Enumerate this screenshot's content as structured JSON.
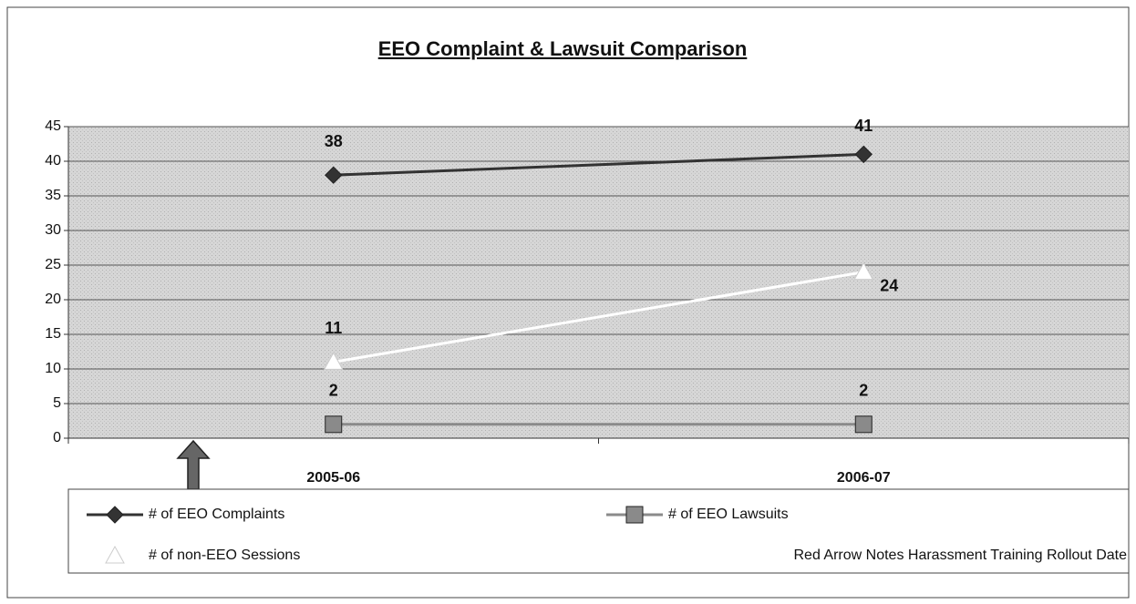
{
  "chart_data": {
    "type": "line",
    "title": "EEO Complaint & Lawsuit Comparison",
    "categories": [
      "2005-06",
      "2006-07"
    ],
    "series": [
      {
        "name": "# of EEO Complaints",
        "color": "#333333",
        "marker": "diamond",
        "values": [
          38,
          41
        ]
      },
      {
        "name": "# of EEO Lawsuits",
        "color": "#8a8a8a",
        "marker": "square",
        "values": [
          2,
          2
        ]
      },
      {
        "name": "# of non-EEO Sessions",
        "color": "#ffffff",
        "marker": "triangle",
        "values": [
          11,
          24
        ]
      }
    ],
    "annotation": "Red Arrow Notes Harassment Training Rollout Date",
    "ylim": [
      0,
      45
    ],
    "yticks": [
      0,
      5,
      10,
      15,
      20,
      25,
      30,
      35,
      40,
      45
    ],
    "grid": true
  }
}
